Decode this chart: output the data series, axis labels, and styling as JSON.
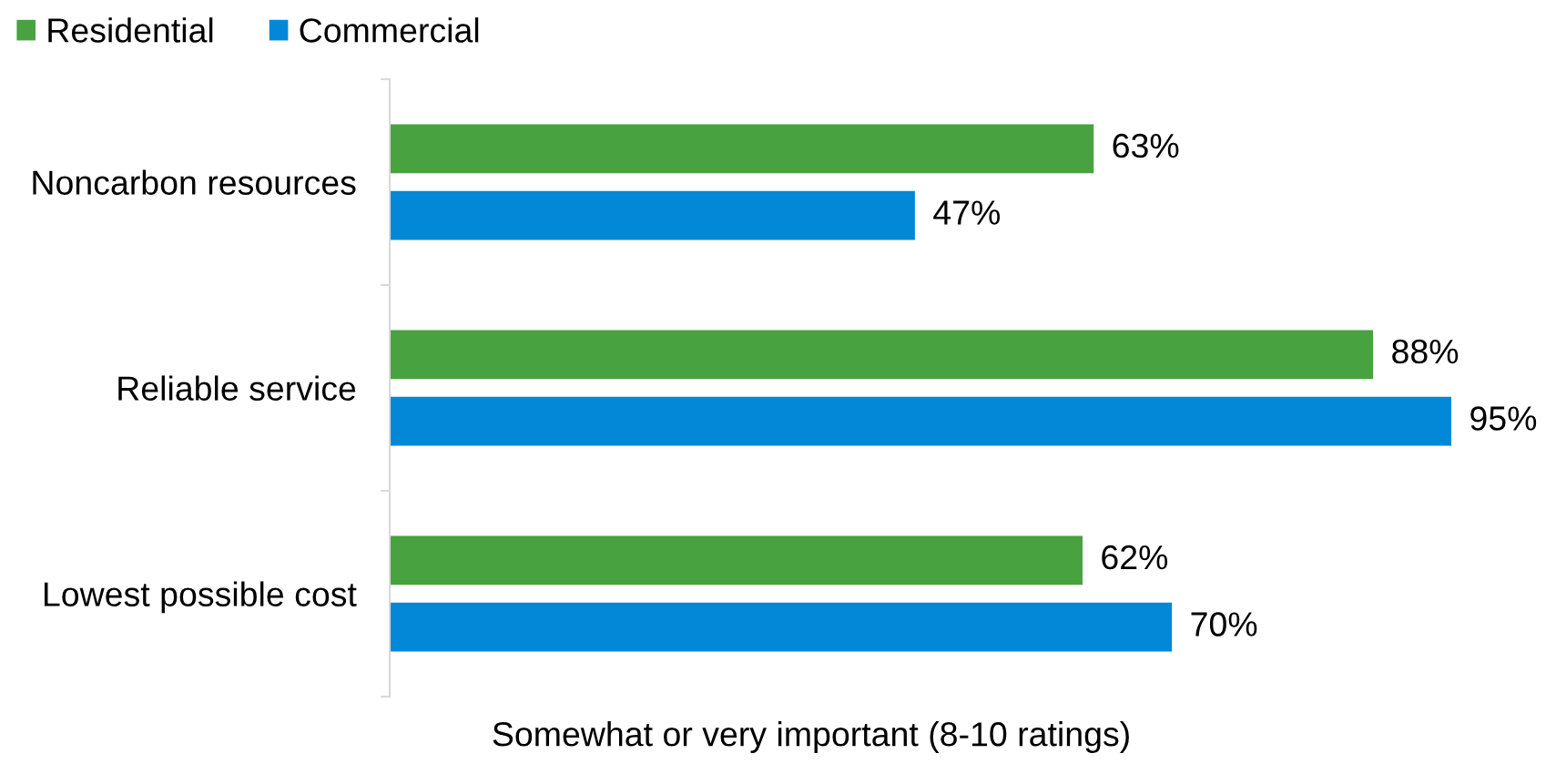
{
  "chart_data": {
    "type": "bar",
    "orientation": "horizontal",
    "xlabel": "Somewhat or very important (8-10 ratings)",
    "legend": "top left",
    "tick_labels": "y",
    "categories": [
      "Noncarbon resources",
      "Reliable service",
      "Lowest possible cost"
    ],
    "series": [
      {
        "name": "Residential",
        "color": "#48a23f",
        "values": [
          63,
          88,
          62
        ],
        "value_labels": [
          "63%",
          "88%",
          "62%"
        ]
      },
      {
        "name": "Commercial",
        "color": "#0288d7",
        "values": [
          47,
          95,
          70
        ],
        "value_labels": [
          "47%",
          "95%",
          "70%"
        ]
      }
    ]
  }
}
